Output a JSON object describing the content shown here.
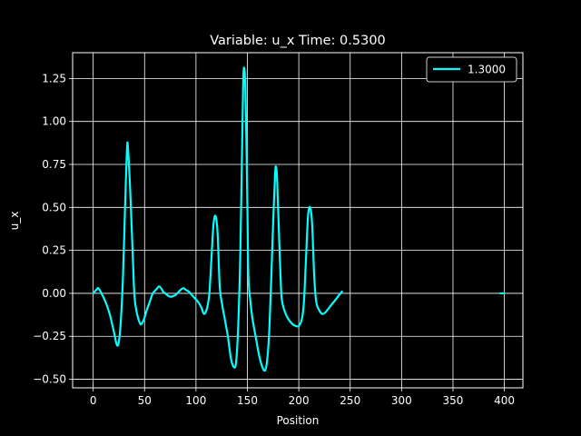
{
  "chart_data": {
    "type": "line",
    "title": "Variable: u_x Time: 0.5300",
    "xlabel": "Position",
    "ylabel": "u_x",
    "xlim": [
      -20,
      418
    ],
    "ylim": [
      -0.55,
      1.4
    ],
    "xticks": [
      0,
      50,
      100,
      150,
      200,
      250,
      300,
      350,
      400
    ],
    "yticks": [
      -0.5,
      -0.25,
      0.0,
      0.25,
      0.5,
      0.75,
      1.0,
      1.25
    ],
    "ytick_labels": [
      "−0.50",
      "−0.25",
      "0.00",
      "0.25",
      "0.50",
      "0.75",
      "1.00",
      "1.25"
    ],
    "grid": true,
    "legend_position": "top-right",
    "background": "#000000",
    "foreground": "#ffffff",
    "series": [
      {
        "name": "1.3000",
        "color": "#00ffff",
        "x": [
          0,
          3,
          5,
          8,
          12,
          16,
          20,
          23,
          25,
          27,
          29,
          31,
          33,
          34,
          36,
          38,
          40,
          42,
          44,
          46,
          48,
          50,
          52,
          55,
          58,
          61,
          64,
          66,
          68,
          70,
          72,
          75,
          80,
          85,
          88,
          90,
          93,
          96,
          99,
          102,
          105,
          108,
          111,
          113,
          115,
          117,
          119,
          121,
          123,
          125,
          128,
          131,
          134,
          137,
          139,
          141,
          143,
          145,
          146,
          147,
          148,
          149,
          150,
          151,
          153,
          155,
          158,
          161,
          164,
          167,
          169,
          171,
          173,
          175,
          177,
          178,
          179,
          181,
          183,
          185,
          188,
          191,
          194,
          197,
          200,
          203,
          205,
          207,
          209,
          211,
          213,
          215,
          217,
          220,
          223,
          226,
          230,
          234,
          238,
          242
        ],
        "y": [
          0.0,
          0.02,
          0.03,
          0.0,
          -0.05,
          -0.12,
          -0.22,
          -0.3,
          -0.28,
          -0.15,
          0.1,
          0.5,
          0.85,
          0.83,
          0.6,
          0.3,
          0.0,
          -0.1,
          -0.15,
          -0.18,
          -0.17,
          -0.14,
          -0.1,
          -0.05,
          0.0,
          0.02,
          0.04,
          0.03,
          0.01,
          0.0,
          -0.01,
          -0.02,
          -0.01,
          0.02,
          0.03,
          0.02,
          0.01,
          -0.01,
          -0.03,
          -0.05,
          -0.08,
          -0.12,
          -0.08,
          0.0,
          0.2,
          0.4,
          0.45,
          0.35,
          0.05,
          -0.05,
          -0.15,
          -0.25,
          -0.38,
          -0.43,
          -0.4,
          -0.2,
          0.2,
          0.9,
          1.25,
          1.31,
          1.2,
          0.9,
          0.5,
          0.1,
          -0.05,
          -0.15,
          -0.25,
          -0.35,
          -0.42,
          -0.45,
          -0.4,
          -0.25,
          0.05,
          0.4,
          0.7,
          0.73,
          0.65,
          0.3,
          0.0,
          -0.08,
          -0.13,
          -0.16,
          -0.18,
          -0.19,
          -0.19,
          -0.15,
          -0.05,
          0.2,
          0.45,
          0.5,
          0.4,
          0.1,
          -0.05,
          -0.1,
          -0.12,
          -0.11,
          -0.08,
          -0.05,
          -0.02,
          0.01
        ]
      },
      {
        "name": "",
        "color": "#00ffff",
        "x": [
          396,
          398,
          400
        ],
        "y": [
          0.0,
          0.0,
          0.0
        ]
      }
    ]
  }
}
